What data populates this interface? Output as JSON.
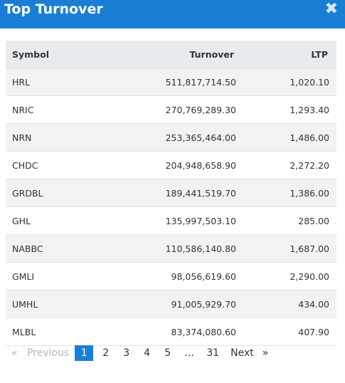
{
  "header": {
    "title": "Top Turnover",
    "close_symbol": "✖"
  },
  "table": {
    "columns": [
      "Symbol",
      "Turnover",
      "LTP"
    ],
    "rows": [
      {
        "symbol": "HRL",
        "turnover": "511,817,714.50",
        "ltp": "1,020.10"
      },
      {
        "symbol": "NRIC",
        "turnover": "270,769,289.30",
        "ltp": "1,293.40"
      },
      {
        "symbol": "NRN",
        "turnover": "253,365,464.00",
        "ltp": "1,486.00"
      },
      {
        "symbol": "CHDC",
        "turnover": "204,948,658.90",
        "ltp": "2,272.20"
      },
      {
        "symbol": "GRDBL",
        "turnover": "189,441,519.70",
        "ltp": "1,386.00"
      },
      {
        "symbol": "GHL",
        "turnover": "135,997,503.10",
        "ltp": "285.00"
      },
      {
        "symbol": "NABBC",
        "turnover": "110,586,140.80",
        "ltp": "1,687.00"
      },
      {
        "symbol": "GMLI",
        "turnover": "98,056,619.60",
        "ltp": "2,290.00"
      },
      {
        "symbol": "UMHL",
        "turnover": "91,005,929.70",
        "ltp": "434.00"
      },
      {
        "symbol": "MLBL",
        "turnover": "83,374,080.60",
        "ltp": "407.90"
      }
    ]
  },
  "pagination": {
    "first_symbol": "«",
    "previous_label": "Previous",
    "pages": [
      "1",
      "2",
      "3",
      "4",
      "5"
    ],
    "ellipsis": "…",
    "last_page": "31",
    "next_label": "Next",
    "last_symbol": "»",
    "current_page": "1"
  }
}
